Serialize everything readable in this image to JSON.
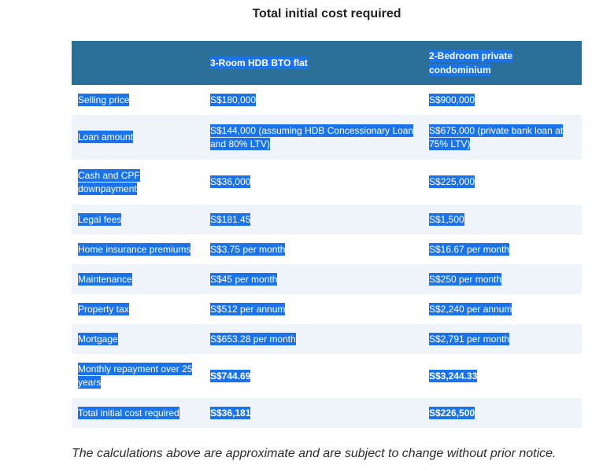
{
  "title": "Total initial cost required",
  "table": {
    "headers": [
      "",
      "3-Room HDB BTO flat",
      "2-Bedroom private condominium"
    ],
    "rows": [
      {
        "label": "Selling price",
        "hdb": "S$180,000",
        "condo": "S$900,000",
        "bold": false
      },
      {
        "label": "Loan amount",
        "hdb": "S$144,000 (assuming HDB Concessionary Loan and 80% LTV)",
        "condo": "S$675,000 (private bank loan at 75% LTV)",
        "bold": false
      },
      {
        "label": "Cash and CPF downpayment",
        "hdb": "S$36,000",
        "condo": "S$225,000",
        "bold": false
      },
      {
        "label": "Legal fees",
        "hdb": "S$181.45",
        "condo": "S$1,500",
        "bold": false
      },
      {
        "label": "Home insurance premiums",
        "hdb": "S$3.75 per month",
        "condo": "S$16.67 per month",
        "bold": false
      },
      {
        "label": "Maintenance",
        "hdb": "S$45 per month",
        "condo": "S$250 per month",
        "bold": false
      },
      {
        "label": "Property tax",
        "hdb": "S$512 per annum",
        "condo": "S$2,240 per annum",
        "bold": false
      },
      {
        "label": "Mortgage",
        "hdb": "S$653.28 per month",
        "condo": "S$2,791 per month",
        "bold": false
      },
      {
        "label": "Monthly repayment over 25 years",
        "hdb": "S$744.69",
        "condo": "S$3,244.33",
        "bold": true
      },
      {
        "label": "Total initial cost required",
        "hdb": "S$36,181",
        "condo": "S$226,500",
        "bold": true
      }
    ]
  },
  "note": "The calculations above are approximate and are subject to change without prior notice."
}
